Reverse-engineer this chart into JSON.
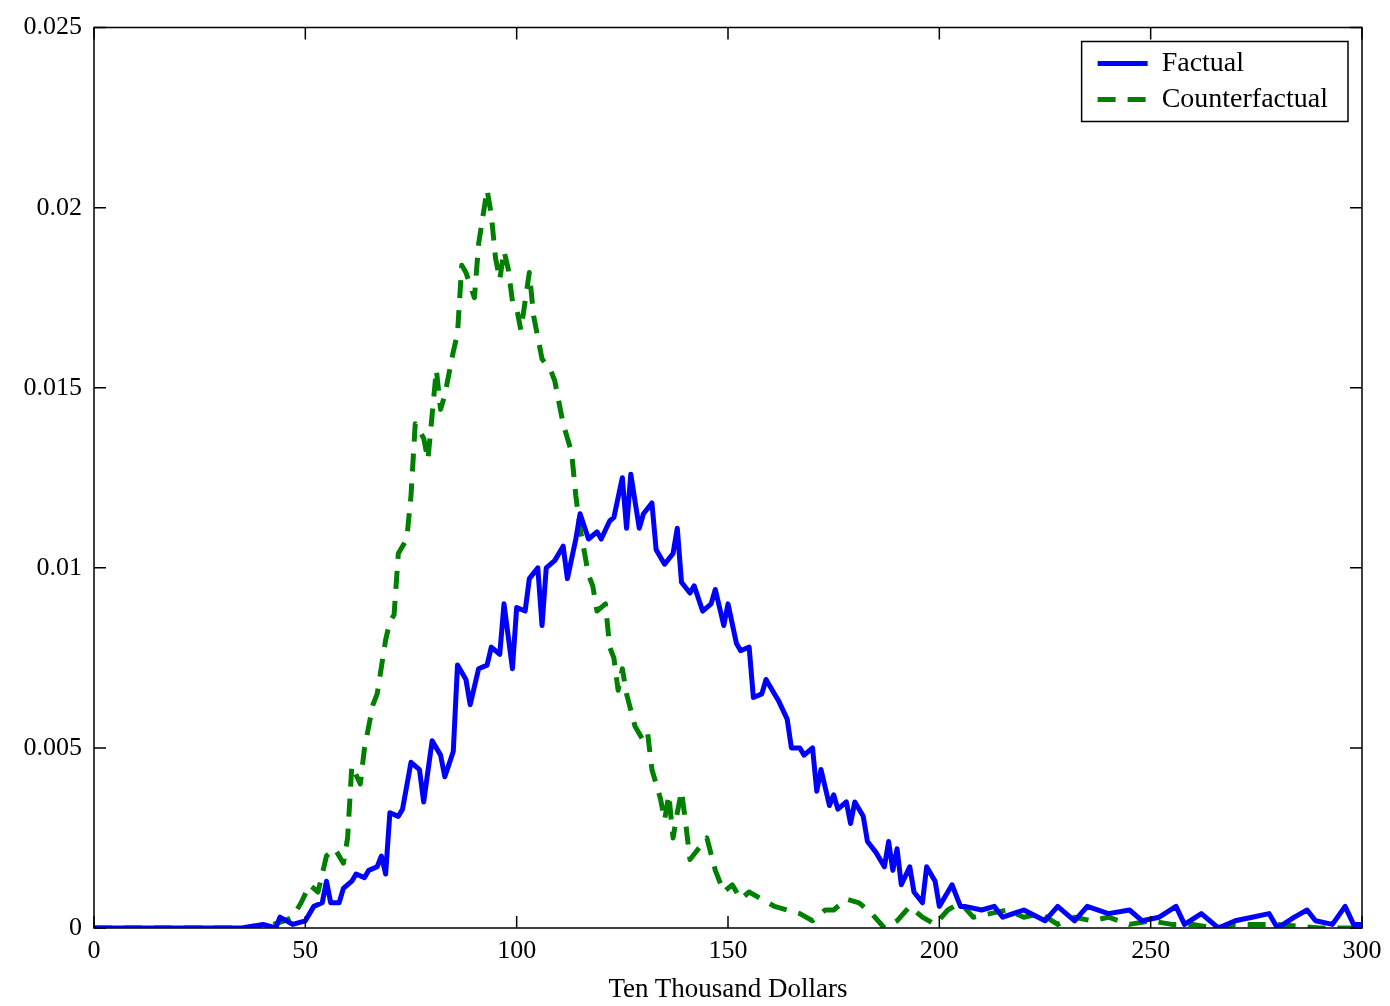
{
  "chart_data": {
    "type": "line",
    "xlabel": "Ten Thousand Dollars",
    "xlim": [
      0,
      300
    ],
    "xticks": [
      0,
      50,
      100,
      150,
      200,
      250,
      300
    ],
    "ylim": [
      0,
      0.025
    ],
    "yticks": [
      0,
      0.005,
      0.01,
      0.015,
      0.02,
      0.025
    ],
    "grid": false,
    "legend": "top right",
    "series": [
      {
        "name": "Factual",
        "color": "#0000ff",
        "line_style": "solid",
        "x": [
          0,
          35,
          40,
          43,
          44,
          47,
          50,
          52,
          54,
          55,
          56,
          58,
          59,
          61,
          62,
          64,
          65,
          67,
          68,
          69,
          70,
          72,
          73,
          75,
          77,
          78,
          80,
          82,
          83,
          85,
          86,
          88,
          89,
          91,
          93,
          94,
          96,
          97,
          99,
          100,
          102,
          103,
          105,
          106,
          107,
          109,
          111,
          112,
          114,
          115,
          117,
          119,
          120,
          122,
          123,
          125,
          126,
          127,
          129,
          130,
          132,
          133,
          135,
          137,
          138,
          139,
          141,
          142,
          144,
          146,
          147,
          149,
          150,
          152,
          153,
          155,
          156,
          158,
          159,
          161,
          162,
          164,
          165,
          167,
          168,
          170,
          171,
          172,
          174,
          175,
          176,
          178,
          179,
          180,
          182,
          183,
          185,
          187,
          188,
          189,
          190,
          191,
          193,
          194,
          196,
          197,
          199,
          200,
          202,
          203,
          205,
          206,
          210,
          213,
          215,
          220,
          225,
          228,
          232,
          235,
          240,
          245,
          248,
          252,
          256,
          258,
          262,
          266,
          270,
          274,
          278,
          280,
          284,
          287,
          289,
          293,
          296,
          298,
          300
        ],
        "values": [
          0,
          0,
          0.0001,
          0,
          0.0003,
          0.0001,
          0.0002,
          0.0006,
          0.0007,
          0.0013,
          0.0007,
          0.0007,
          0.0011,
          0.0013,
          0.0015,
          0.0014,
          0.0016,
          0.0017,
          0.002,
          0.0015,
          0.0032,
          0.0031,
          0.0033,
          0.0046,
          0.0044,
          0.0035,
          0.0052,
          0.0048,
          0.0042,
          0.0049,
          0.0073,
          0.0069,
          0.0062,
          0.0072,
          0.0073,
          0.0078,
          0.0076,
          0.009,
          0.0072,
          0.0089,
          0.0088,
          0.0097,
          0.01,
          0.0084,
          0.01,
          0.0102,
          0.0106,
          0.0097,
          0.0108,
          0.0115,
          0.0108,
          0.011,
          0.0108,
          0.0113,
          0.0114,
          0.0125,
          0.0111,
          0.0126,
          0.0111,
          0.0115,
          0.0118,
          0.0105,
          0.0101,
          0.0104,
          0.0111,
          0.0096,
          0.0093,
          0.0095,
          0.0088,
          0.009,
          0.0094,
          0.0084,
          0.009,
          0.0079,
          0.0077,
          0.0078,
          0.0064,
          0.0065,
          0.0069,
          0.0065,
          0.0063,
          0.0058,
          0.005,
          0.005,
          0.0048,
          0.005,
          0.0038,
          0.0044,
          0.0034,
          0.0037,
          0.0033,
          0.0035,
          0.0029,
          0.0035,
          0.0031,
          0.0024,
          0.0021,
          0.0017,
          0.0024,
          0.0016,
          0.0022,
          0.0012,
          0.0017,
          0.001,
          0.0007,
          0.0017,
          0.0013,
          0.0006,
          0.001,
          0.0012,
          0.0006,
          0.0006,
          0.0005,
          0.0006,
          0.0003,
          0.0005,
          0.0002,
          0.0006,
          0.0002,
          0.0006,
          0.0004,
          0.0005,
          0.0002,
          0.0003,
          0.0006,
          0.0001,
          0.0004,
          0,
          0.0002,
          0.0003,
          0.0004,
          0,
          0.0003,
          0.0005,
          0.0002,
          0.0001,
          0.0006,
          0.0001,
          0.0001
        ]
      },
      {
        "name": "Counterfactual",
        "color": "#008000",
        "line_style": "dashed",
        "x": [
          0,
          40,
          45,
          47,
          49,
          51,
          53,
          55,
          57,
          59,
          60,
          61,
          63,
          64,
          66,
          67,
          69,
          70,
          71,
          72,
          74,
          75,
          76,
          78,
          79,
          81,
          82,
          83,
          85,
          86,
          87,
          88,
          90,
          91,
          93,
          94,
          95,
          96,
          97,
          98,
          99,
          100,
          101,
          102,
          103,
          104,
          106,
          108,
          109,
          110,
          111,
          113,
          114,
          115,
          117,
          118,
          119,
          121,
          122,
          123,
          124,
          125,
          126,
          128,
          130,
          131,
          132,
          134,
          135,
          136,
          137,
          138,
          139,
          140,
          141,
          143,
          145,
          147,
          149,
          151,
          153,
          155,
          158,
          161,
          164,
          167,
          170,
          173,
          175,
          178,
          181,
          184,
          187,
          190,
          193,
          196,
          199,
          202,
          205,
          208,
          212,
          216,
          220,
          224,
          228,
          232,
          236,
          240,
          245,
          250,
          255,
          260,
          265,
          270,
          280,
          290,
          300
        ],
        "values": [
          0,
          0,
          0.0002,
          0.0003,
          0.0007,
          0.0012,
          0.001,
          0.002,
          0.0022,
          0.0018,
          0.0025,
          0.0045,
          0.004,
          0.005,
          0.0062,
          0.0065,
          0.008,
          0.0085,
          0.0087,
          0.0104,
          0.0108,
          0.012,
          0.014,
          0.0136,
          0.013,
          0.0155,
          0.0144,
          0.0148,
          0.016,
          0.0165,
          0.0184,
          0.0182,
          0.0175,
          0.019,
          0.0205,
          0.0198,
          0.0186,
          0.018,
          0.0188,
          0.0183,
          0.0174,
          0.0172,
          0.0166,
          0.0174,
          0.0182,
          0.017,
          0.0158,
          0.0155,
          0.0152,
          0.0146,
          0.014,
          0.0132,
          0.012,
          0.0111,
          0.0098,
          0.0095,
          0.0088,
          0.009,
          0.0078,
          0.0075,
          0.0066,
          0.0072,
          0.0065,
          0.0056,
          0.0052,
          0.0054,
          0.0044,
          0.0036,
          0.003,
          0.0037,
          0.0025,
          0.0032,
          0.0038,
          0.0029,
          0.0019,
          0.0022,
          0.0025,
          0.0016,
          0.001,
          0.0012,
          0.0008,
          0.001,
          0.0008,
          0.0006,
          0.0005,
          0.0004,
          0.0002,
          0.0005,
          0.0005,
          0.0008,
          0.0007,
          0.0004,
          0,
          0.0002,
          0.0006,
          0.0003,
          0.0001,
          0.0005,
          0.0007,
          0.0003,
          0.0004,
          0.0005,
          0.0003,
          0.0004,
          0.0001,
          0.0003,
          0.0002,
          0.0003,
          0.0001,
          0.0002,
          0.0001,
          0.0001,
          0,
          0.0001,
          0.0001,
          0,
          0
        ]
      }
    ]
  }
}
